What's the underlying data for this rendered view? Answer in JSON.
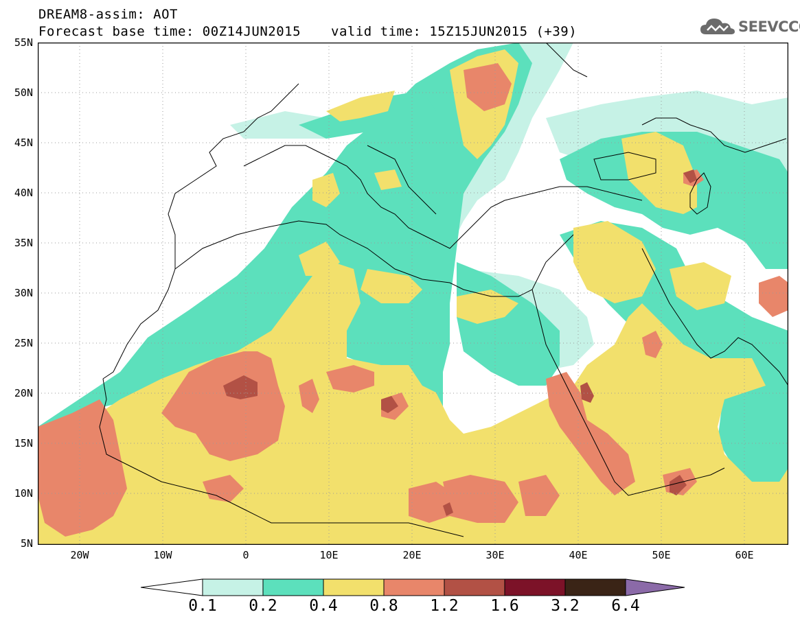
{
  "header": {
    "title": "DREAM8-assim: AOT",
    "base_time": "Forecast base time: 00Z14JUN2015",
    "valid_time": "valid time: 15Z15JUN2015 (+39)",
    "logo_text": "SEEVCCC"
  },
  "axes": {
    "lat_labels": [
      "55N",
      "50N",
      "45N",
      "40N",
      "35N",
      "30N",
      "25N",
      "20N",
      "15N",
      "10N",
      "5N"
    ],
    "lon_labels": [
      "20W",
      "10W",
      "0",
      "10E",
      "20E",
      "30E",
      "40E",
      "50E",
      "60E"
    ]
  },
  "colorbar": {
    "labels": [
      "0.1",
      "0.2",
      "0.4",
      "0.8",
      "1.2",
      "1.6",
      "3.2",
      "6.4"
    ],
    "colors": [
      "#c6f2e6",
      "#5ce0bc",
      "#f2e06c",
      "#e8866a",
      "#b25145",
      "#7c1228",
      "#3a2416",
      "#8b6aa8"
    ]
  },
  "map": {
    "variable": "AOT",
    "extent_lon": [
      -25,
      65
    ],
    "extent_lat": [
      5,
      55
    ],
    "grid": "dotted"
  }
}
